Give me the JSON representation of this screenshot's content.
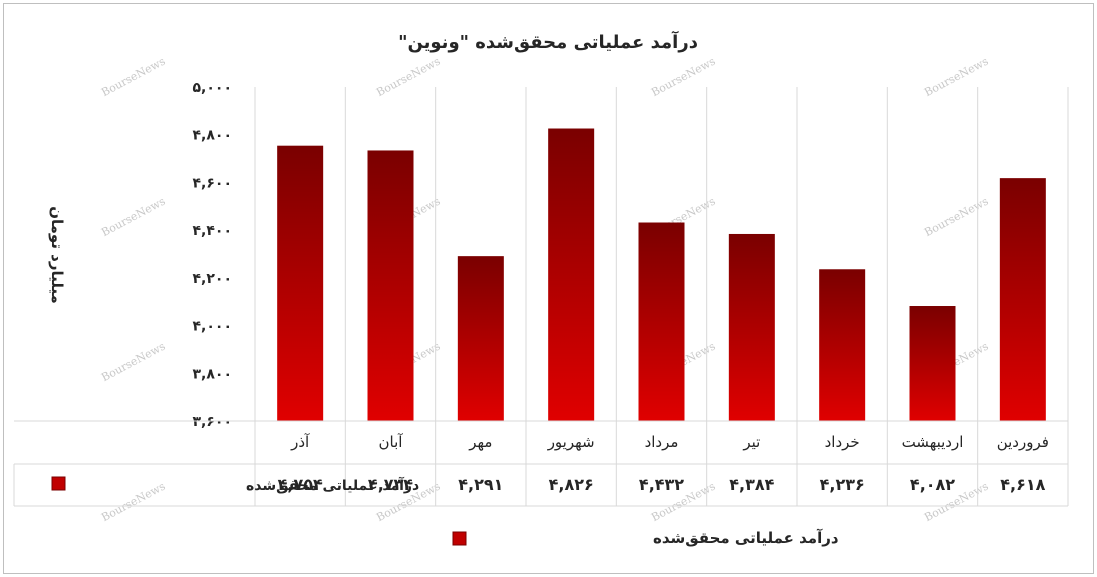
{
  "chart_data": {
    "type": "bar",
    "title": "درآمد عملیاتی محقق‌شده \"ونوین\"",
    "ylabel": "میلیارد تومان",
    "xlabel": "",
    "categories": [
      "فروردین",
      "اردیبهشت",
      "خرداد",
      "تیر",
      "مرداد",
      "شهریور",
      "مهر",
      "آبان",
      "آذر"
    ],
    "series": [
      {
        "name": "درآمد عملیاتی محقق‌شده",
        "values": [
          4618,
          4082,
          4236,
          4384,
          4432,
          4826,
          4291,
          4734,
          4754
        ],
        "value_labels": [
          "۴,۶۱۸",
          "۴,۰۸۲",
          "۴,۲۳۶",
          "۴,۳۸۴",
          "۴,۴۳۲",
          "۴,۸۲۶",
          "۴,۲۹۱",
          "۴,۷۳۴",
          "۴,۷۵۴"
        ],
        "color": "#c00000"
      }
    ],
    "ylim": [
      3600,
      5000
    ],
    "yticks": [
      3600,
      3800,
      4000,
      4200,
      4400,
      4600,
      4800,
      5000
    ],
    "ytick_labels": [
      "۳,۶۰۰",
      "۳,۸۰۰",
      "۴,۰۰۰",
      "۴,۲۰۰",
      "۴,۴۰۰",
      "۴,۶۰۰",
      "۴,۸۰۰",
      "۵,۰۰۰"
    ],
    "grid": true,
    "legend": "bottom",
    "data_table": true,
    "watermark": "BourseNews",
    "colors": {
      "bar_top": "#7a0000",
      "bar_bottom": "#e00000",
      "grid": "#d9d9d9"
    }
  }
}
